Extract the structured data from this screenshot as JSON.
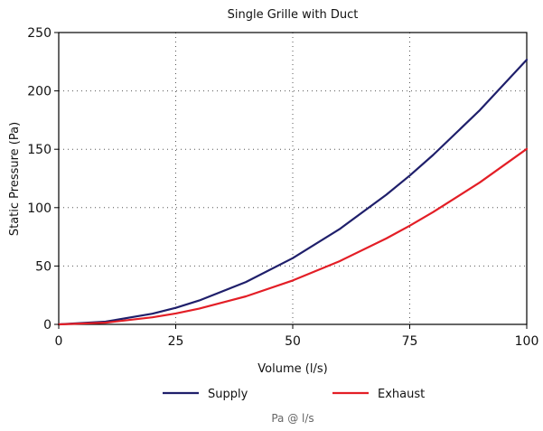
{
  "chart_data": {
    "type": "line",
    "title": "Single Grille with Duct",
    "xlabel": "Volume (l/s)",
    "ylabel": "Static Pressure (Pa)",
    "xlim": [
      0,
      100
    ],
    "ylim": [
      0,
      250
    ],
    "x_ticks": [
      "0",
      "25",
      "50",
      "75",
      "100"
    ],
    "y_ticks": [
      "0",
      "50",
      "100",
      "150",
      "200",
      "250"
    ],
    "grid": "dotted",
    "legend_position": "bottom",
    "footnote": "Pa @ l/s",
    "x": [
      0,
      10,
      20,
      25,
      30,
      40,
      50,
      60,
      70,
      75,
      80,
      90,
      100
    ],
    "series": [
      {
        "name": "Supply",
        "color": "#1f1f6b",
        "values": [
          0,
          2.3,
          9.1,
          14.2,
          20.4,
          36.3,
          56.7,
          81.6,
          111.1,
          127.5,
          145.1,
          183.6,
          226.7
        ]
      },
      {
        "name": "Exhaust",
        "color": "#e31e26",
        "values": [
          0,
          1.5,
          6.0,
          9.4,
          13.5,
          24.0,
          37.6,
          54.1,
          73.6,
          84.5,
          96.2,
          121.7,
          150.3
        ]
      }
    ]
  }
}
